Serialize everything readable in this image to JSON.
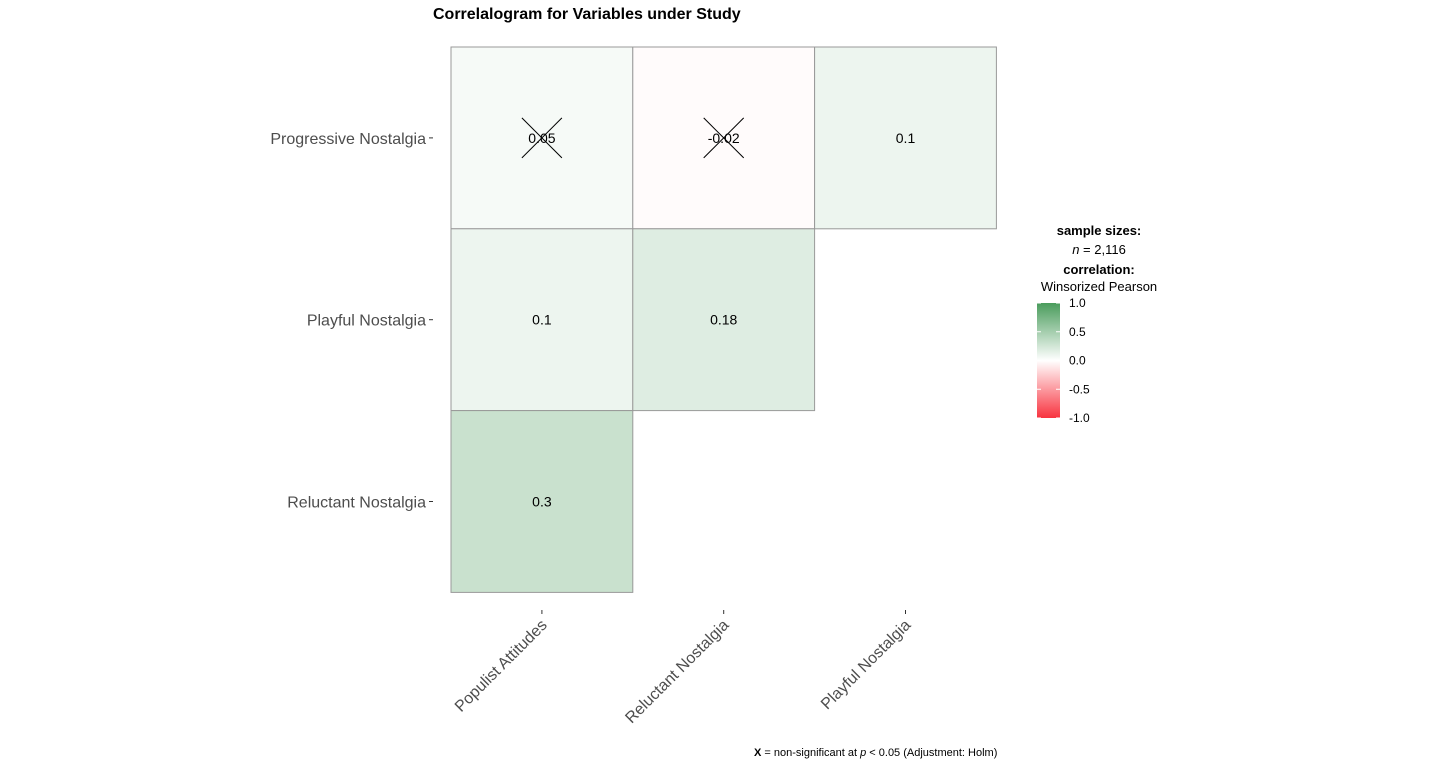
{
  "chart_data": {
    "type": "heatmap",
    "title": "Correlalogram for Variables under Study",
    "rows": [
      "Progressive Nostalgia",
      "Playful Nostalgia",
      "Reluctant Nostalgia"
    ],
    "columns": [
      "Populist Attitudes",
      "Reluctant Nostalgia",
      "Playful Nostalgia"
    ],
    "cells": [
      {
        "row": "Progressive Nostalgia",
        "col": "Populist Attitudes",
        "value": 0.05,
        "label": "0.05",
        "nonsignificant": true
      },
      {
        "row": "Progressive Nostalgia",
        "col": "Reluctant Nostalgia",
        "value": -0.02,
        "label": "-0.02",
        "nonsignificant": true
      },
      {
        "row": "Progressive Nostalgia",
        "col": "Playful Nostalgia",
        "value": 0.1,
        "label": "0.1",
        "nonsignificant": false
      },
      {
        "row": "Playful Nostalgia",
        "col": "Populist Attitudes",
        "value": 0.1,
        "label": "0.1",
        "nonsignificant": false
      },
      {
        "row": "Playful Nostalgia",
        "col": "Reluctant Nostalgia",
        "value": 0.18,
        "label": "0.18",
        "nonsignificant": false
      },
      {
        "row": "Reluctant Nostalgia",
        "col": "Populist Attitudes",
        "value": 0.3,
        "label": "0.3",
        "nonsignificant": false
      }
    ],
    "legend": {
      "sample_title": "sample sizes:",
      "sample_n_symbol": "n",
      "sample_n_value": " = 2,116",
      "correlation_title": "correlation:",
      "correlation_method": "Winsorized Pearson",
      "ticks": [
        "1.0",
        "0.5",
        "0.0",
        "-0.5",
        "-1.0"
      ],
      "range": [
        -1,
        1
      ],
      "colors": {
        "low": "#f8333f",
        "mid": "#ffffff",
        "high": "#4a9c5c"
      },
      "placement": "right"
    },
    "caption": {
      "x_symbol": "X",
      "part1": " = non-significant at ",
      "p_symbol": "p",
      "part2": " < 0.05 (Adjustment: Holm)"
    },
    "grid": false
  }
}
